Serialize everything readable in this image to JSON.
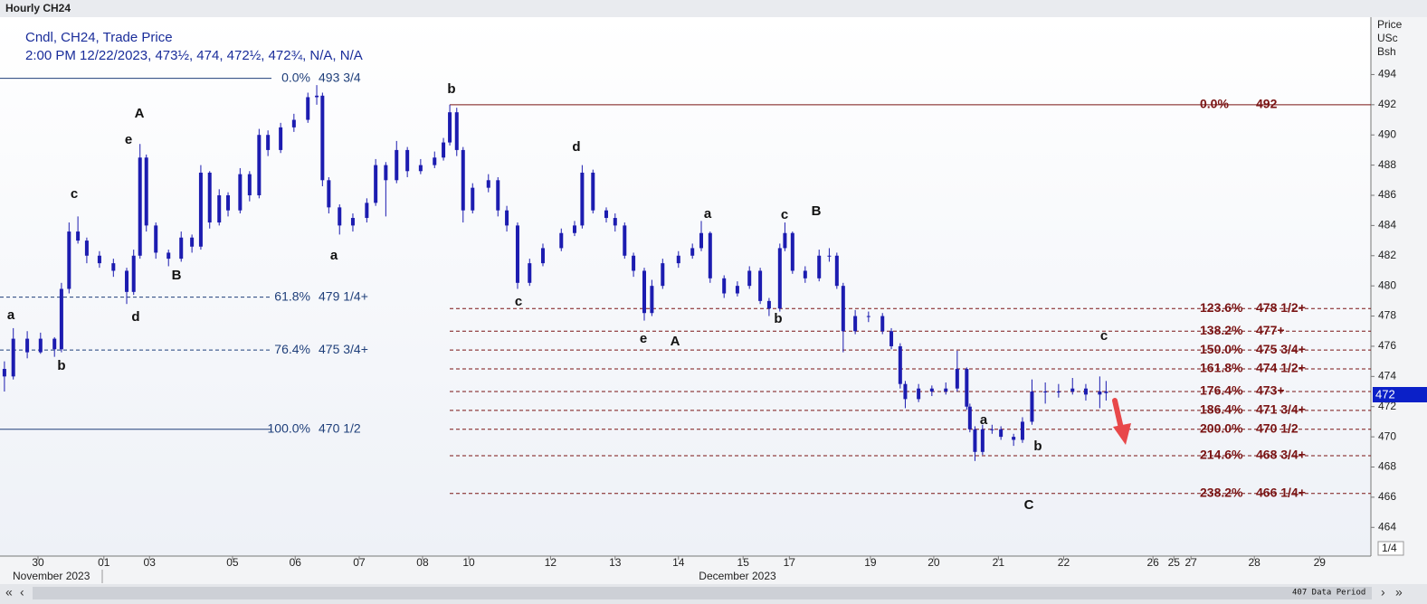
{
  "header": {
    "title": "Hourly CH24"
  },
  "legend": {
    "line1": "Cndl, CH24, Trade Price",
    "line2": "2:00 PM 12/22/2023, 473½, 474, 472½, 472¾, N/A, N/A"
  },
  "chart_data": {
    "type": "candlestick",
    "color": "#1c1cb0",
    "x": [
      -0.53,
      -0.39,
      -0.17,
      0.04,
      0.26,
      0.37,
      0.49,
      0.63,
      0.77,
      0.97,
      1.19,
      1.4,
      1.51,
      1.61,
      1.71,
      1.86,
      2.06,
      2.26,
      2.43,
      2.57,
      2.71,
      2.86,
      3.0,
      3.19,
      3.34,
      3.49,
      3.63,
      3.83,
      4.04,
      4.26,
      4.4,
      4.49,
      4.59,
      4.76,
      4.97,
      5.19,
      5.33,
      5.49,
      5.66,
      5.83,
      6.04,
      6.26,
      6.4,
      6.5,
      6.61,
      6.71,
      6.86,
      7.11,
      7.26,
      7.4,
      7.57,
      7.76,
      7.97,
      8.26,
      8.47,
      8.59,
      8.76,
      8.97,
      9.11,
      9.26,
      9.4,
      9.57,
      9.69,
      9.86,
      10.11,
      10.33,
      10.47,
      10.61,
      10.83,
      11.04,
      11.23,
      11.4,
      11.54,
      11.71,
      11.79,
      11.91,
      12.11,
      12.33,
      12.49,
      12.61,
      12.71,
      12.9,
      13.11,
      13.33,
      13.47,
      13.61,
      13.69,
      13.9,
      14.11,
      14.33,
      14.51,
      14.66,
      14.71,
      14.79,
      14.91,
      15.06,
      15.2,
      15.4,
      15.54,
      15.69,
      15.9,
      16.11,
      16.33,
      16.54,
      16.76,
      16.86
    ],
    "open": [
      474.5,
      474.0,
      476.5,
      475.6,
      476.5,
      475.8,
      479.8,
      483.6,
      483.0,
      482.0,
      481.5,
      481.0,
      479.6,
      482.0,
      488.5,
      484.0,
      482.2,
      481.8,
      483.2,
      482.6,
      487.5,
      484.2,
      486.0,
      485.0,
      487.4,
      486.0,
      490.0,
      489.0,
      490.5,
      491.0,
      492.5,
      492.6,
      487.0,
      485.2,
      484.0,
      484.5,
      485.5,
      488.0,
      487.0,
      489.0,
      487.6,
      488.0,
      488.5,
      489.5,
      491.5,
      489.0,
      485.0,
      486.5,
      487.0,
      485.0,
      484.0,
      480.2,
      481.5,
      482.5,
      483.5,
      484.0,
      487.5,
      485.0,
      484.5,
      484.0,
      482.0,
      481.0,
      478.2,
      480.0,
      481.5,
      482.0,
      482.5,
      483.5,
      480.5,
      479.5,
      480.0,
      481.0,
      479.0,
      478.5,
      482.5,
      483.5,
      481.0,
      480.5,
      482.0,
      482.0,
      480.0,
      477.0,
      478.0,
      478.0,
      477.0,
      476.0,
      473.5,
      472.5,
      473.2,
      473.0,
      473.2,
      474.5,
      472.0,
      470.5,
      469.0,
      470.5,
      470.5,
      470.0,
      469.8,
      471.0,
      473.0,
      473.0,
      473.0,
      473.2,
      472.8,
      473.0
    ],
    "high": [
      475.0,
      477.2,
      477.0,
      476.9,
      476.6,
      480.2,
      484.2,
      484.6,
      483.2,
      482.3,
      481.8,
      481.2,
      482.4,
      489.4,
      488.7,
      484.2,
      482.4,
      483.6,
      483.4,
      488.0,
      487.6,
      486.4,
      486.2,
      487.8,
      487.6,
      490.4,
      490.3,
      490.8,
      491.4,
      492.8,
      493.3,
      492.8,
      487.2,
      485.4,
      484.8,
      485.8,
      488.4,
      488.2,
      489.6,
      489.2,
      488.4,
      488.9,
      489.8,
      492.0,
      491.8,
      489.2,
      486.8,
      487.4,
      487.2,
      485.3,
      484.2,
      481.8,
      482.8,
      483.8,
      484.3,
      488.0,
      487.7,
      485.2,
      484.8,
      484.2,
      482.2,
      481.2,
      480.4,
      481.8,
      482.3,
      482.8,
      484.3,
      483.6,
      480.7,
      480.3,
      481.3,
      481.2,
      479.2,
      482.8,
      484.2,
      483.6,
      481.3,
      482.4,
      482.5,
      482.2,
      480.2,
      478.4,
      478.3,
      478.2,
      477.2,
      476.2,
      473.7,
      473.5,
      473.4,
      473.6,
      475.7,
      474.6,
      472.2,
      470.7,
      470.8,
      470.8,
      470.7,
      470.2,
      471.3,
      473.8,
      473.6,
      473.5,
      473.9,
      473.5,
      474.0,
      473.7
    ],
    "low": [
      473.0,
      473.8,
      475.2,
      475.5,
      475.3,
      475.6,
      479.5,
      482.8,
      481.5,
      481.2,
      480.6,
      478.8,
      479.4,
      481.8,
      483.6,
      481.8,
      481.3,
      481.6,
      482.2,
      482.4,
      483.8,
      484.0,
      484.6,
      484.8,
      485.6,
      485.8,
      488.6,
      488.8,
      490.2,
      490.8,
      492.0,
      486.6,
      484.8,
      483.4,
      483.6,
      484.2,
      485.3,
      484.6,
      486.8,
      487.2,
      487.4,
      487.8,
      488.3,
      489.3,
      488.6,
      484.2,
      484.8,
      486.2,
      484.6,
      483.6,
      479.8,
      480.0,
      481.3,
      482.3,
      483.3,
      483.8,
      484.8,
      484.2,
      483.6,
      481.8,
      480.6,
      477.7,
      478.0,
      479.8,
      481.2,
      481.8,
      482.3,
      480.2,
      479.2,
      479.3,
      479.8,
      478.8,
      478.0,
      478.3,
      482.3,
      480.8,
      480.2,
      480.3,
      481.6,
      479.8,
      475.6,
      476.8,
      477.6,
      476.8,
      475.8,
      473.2,
      471.9,
      472.3,
      472.7,
      472.8,
      473.0,
      471.8,
      470.3,
      468.4,
      468.8,
      470.2,
      469.8,
      469.4,
      469.6,
      470.8,
      472.2,
      472.6,
      472.8,
      472.4,
      471.9,
      472.4
    ],
    "close": [
      474.0,
      476.5,
      475.6,
      476.5,
      475.8,
      479.8,
      483.6,
      483.0,
      482.0,
      481.5,
      481.0,
      479.6,
      482.0,
      488.5,
      484.0,
      482.2,
      481.8,
      483.2,
      482.6,
      487.5,
      484.2,
      486.0,
      485.0,
      487.4,
      486.0,
      490.0,
      489.0,
      490.5,
      491.0,
      492.5,
      492.6,
      487.0,
      485.2,
      484.0,
      484.5,
      485.5,
      488.0,
      487.0,
      489.0,
      487.6,
      488.0,
      488.5,
      489.5,
      491.5,
      489.0,
      485.0,
      486.5,
      487.0,
      485.0,
      484.0,
      480.2,
      481.5,
      482.5,
      483.5,
      484.0,
      487.5,
      485.0,
      484.5,
      484.0,
      482.0,
      481.0,
      478.2,
      480.0,
      481.5,
      482.0,
      482.5,
      483.5,
      480.5,
      479.5,
      480.0,
      481.0,
      479.0,
      478.5,
      482.5,
      483.5,
      481.0,
      480.5,
      482.0,
      482.0,
      480.0,
      477.0,
      478.0,
      478.0,
      477.0,
      476.0,
      473.5,
      472.5,
      473.2,
      473.0,
      473.2,
      474.5,
      472.0,
      470.5,
      469.0,
      470.5,
      470.5,
      470.0,
      469.8,
      471.0,
      473.0,
      473.0,
      473.0,
      473.2,
      472.8,
      473.0,
      472.9
    ],
    "xlim": [
      -0.6,
      21.04
    ],
    "xticks": [
      {
        "value": 0,
        "label": "30"
      },
      {
        "value": 1.04,
        "label": "01"
      },
      {
        "value": 1.76,
        "label": "03"
      },
      {
        "value": 3.07,
        "label": "05"
      },
      {
        "value": 4.06,
        "label": "06"
      },
      {
        "value": 5.07,
        "label": "07"
      },
      {
        "value": 6.07,
        "label": "08"
      },
      {
        "value": 6.8,
        "label": "10"
      },
      {
        "value": 8.09,
        "label": "12"
      },
      {
        "value": 9.11,
        "label": "13"
      },
      {
        "value": 10.11,
        "label": "14"
      },
      {
        "value": 11.13,
        "label": "15"
      },
      {
        "value": 11.86,
        "label": "17"
      },
      {
        "value": 13.14,
        "label": "19"
      },
      {
        "value": 14.14,
        "label": "20"
      },
      {
        "value": 15.16,
        "label": "21"
      },
      {
        "value": 16.19,
        "label": "22"
      },
      {
        "value": 17.6,
        "label": "26"
      },
      {
        "value": 17.93,
        "label": "25"
      },
      {
        "value": 18.2,
        "label": "27"
      },
      {
        "value": 19.2,
        "label": "28"
      },
      {
        "value": 20.23,
        "label": "29"
      }
    ],
    "month_labels": [
      "November 2023",
      "December 2023"
    ],
    "ylim": [
      462.1,
      497.8
    ],
    "yticks": [
      464,
      466,
      468,
      470,
      472,
      474,
      476,
      478,
      480,
      482,
      484,
      486,
      488,
      490,
      492,
      494
    ],
    "y_axis_label": [
      "Price",
      "USc",
      "Bsh"
    ],
    "last_price_label": "472",
    "fib_left": [
      {
        "pct": "0.0%",
        "label": "493 3/4",
        "price": 493.75,
        "style": "solid"
      },
      {
        "pct": "61.8%",
        "label": "479 1/4+",
        "price": 479.25,
        "style": "dashed"
      },
      {
        "pct": "76.4%",
        "label": "475 3/4+",
        "price": 475.75,
        "style": "dashed"
      },
      {
        "pct": "100.0%",
        "label": "470 1/2",
        "price": 470.5,
        "style": "solid"
      }
    ],
    "fib_right": [
      {
        "pct": "0.0%",
        "label": "492",
        "price": 492,
        "style": "solid"
      },
      {
        "pct": "123.6%",
        "label": "478 1/2+",
        "price": 478.5,
        "style": "dashed"
      },
      {
        "pct": "138.2%",
        "label": "477+",
        "price": 477,
        "style": "dashed"
      },
      {
        "pct": "150.0%",
        "label": "475 3/4+",
        "price": 475.75,
        "style": "dashed"
      },
      {
        "pct": "161.8%",
        "label": "474 1/2+",
        "price": 474.5,
        "style": "dashed"
      },
      {
        "pct": "176.4%",
        "label": "473+",
        "price": 473,
        "style": "dashed"
      },
      {
        "pct": "186.4%",
        "label": "471 3/4+",
        "price": 471.75,
        "style": "dashed"
      },
      {
        "pct": "200.0%",
        "label": "470 1/2",
        "price": 470.5,
        "style": "dashed"
      },
      {
        "pct": "214.6%",
        "label": "468 3/4+",
        "price": 468.75,
        "style": "dashed"
      },
      {
        "pct": "238.2%",
        "label": "466 1/4+",
        "price": 466.25,
        "style": "dashed"
      }
    ],
    "wave_labels": [
      "a",
      "b",
      "c",
      "d",
      "e",
      "A",
      "B",
      "a",
      "b",
      "c",
      "d",
      "e",
      "A",
      "a",
      "b",
      "c",
      "B",
      "c",
      "a",
      "b",
      "C"
    ]
  },
  "footer": {
    "data_period": "407 Data Period",
    "page": "1/4"
  }
}
